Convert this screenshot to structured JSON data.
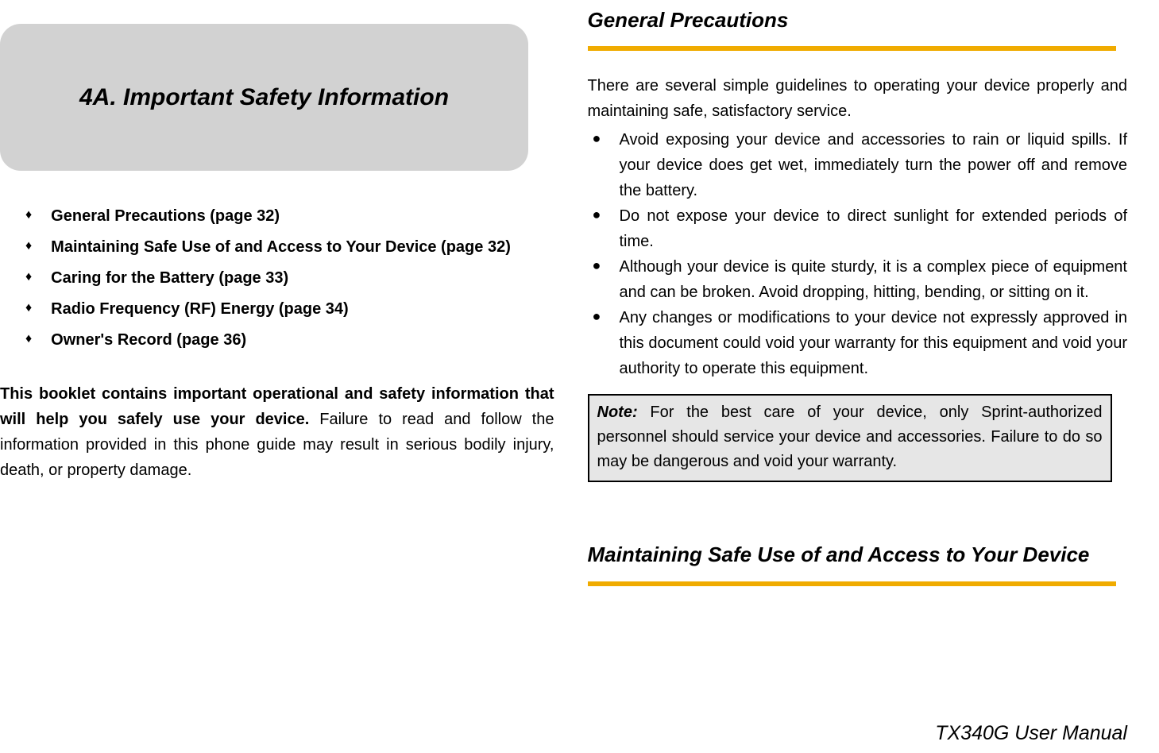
{
  "colors": {
    "rule": "#f0ab00",
    "title_box_bg": "#d2d2d2",
    "note_bg": "#e6e6e6",
    "text": "#000000",
    "page_bg": "#ffffff"
  },
  "left": {
    "title": "4A. Important Safety Information",
    "toc": [
      "General Precautions (page 32)",
      "Maintaining Safe Use of and Access to Your Device (page 32)",
      "Caring for the Battery (page 33)",
      "Radio Frequency (RF) Energy (page 34)",
      "Owner's Record (page 36)"
    ],
    "intro_bold": "This booklet contains important operational and safety information that will help you safely use your device. ",
    "intro_rest": "Failure to read and follow the information provided in this phone guide may result in serious bodily injury, death, or property damage."
  },
  "right": {
    "heading1": "General Precautions",
    "lead": "There are several simple guidelines to operating your device properly and maintaining safe, satisfactory service.",
    "bullets": [
      "Avoid exposing your device and accessories to rain or liquid spills. If your device does get wet, immediately turn the power off and remove the battery.",
      "Do not expose your device to direct sunlight for extended periods of time.",
      "Although your device is quite sturdy, it is a complex piece of equipment and can be broken. Avoid dropping, hitting, bending, or sitting on it.",
      "Any changes or modifications to your device not expressly approved in this document could void your warranty for this equipment and void your authority to operate this equipment."
    ],
    "note_label": "Note:",
    "note_body": " For the best care of your device, only Sprint-authorized personnel should service your device and accessories. Failure to do so may be dangerous and void your warranty.",
    "heading2": "Maintaining Safe Use of and Access to Your Device"
  },
  "footer": "TX340G User Manual",
  "glyphs": {
    "diamond": "♦",
    "disc": "●"
  }
}
